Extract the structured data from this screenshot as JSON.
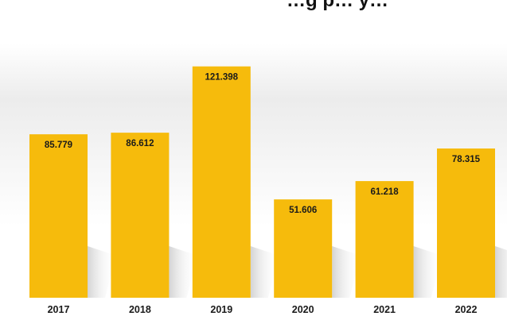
{
  "chart_data": {
    "type": "bar",
    "title": "…g p… y…",
    "categories": [
      "2017",
      "2018",
      "2019",
      "2020",
      "2021",
      "2022"
    ],
    "values": [
      85779,
      86612,
      121398,
      51606,
      61218,
      78315
    ],
    "data_labels": [
      "85.779",
      "86.612",
      "121.398",
      "51.606",
      "61.218",
      "78.315"
    ],
    "ylim": [
      0,
      130000
    ],
    "bar_color": "#f6bb0c",
    "grid": false,
    "legend": "none"
  }
}
